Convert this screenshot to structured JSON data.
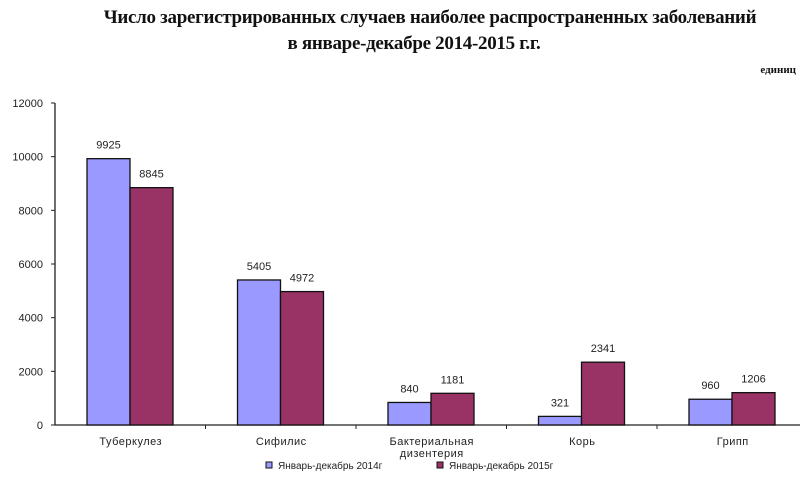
{
  "title_line1": "Число зарегистрированных случаев наиболее распространенных заболеваний",
  "title_line2": "в январе-декабре 2014-2015 г.г.",
  "units": "единиц",
  "colors": {
    "series2014": "#9999ff",
    "series2015": "#993366"
  },
  "chart_data": {
    "type": "bar",
    "title": "Число зарегистрированных случаев наиболее распространенных заболеваний в январе-декабре 2014-2015 г.г.",
    "units": "единиц",
    "categories": [
      "Туберкулез",
      "Сифилис",
      "Бактериальная дизентерия",
      "Корь",
      "Грипп"
    ],
    "series": [
      {
        "name": "Январь-декабрь 2014г",
        "values": [
          9925,
          5405,
          840,
          321,
          960
        ],
        "color": "#9999ff"
      },
      {
        "name": "Январь-декабрь 2015г",
        "values": [
          8845,
          4972,
          1181,
          2341,
          1206
        ],
        "color": "#993366"
      }
    ],
    "yticks": [
      0,
      2000,
      4000,
      6000,
      8000,
      10000,
      12000
    ],
    "ylim": [
      0,
      12000
    ],
    "xlabel": "",
    "ylabel": "",
    "grid": false,
    "legend_position": "bottom"
  }
}
